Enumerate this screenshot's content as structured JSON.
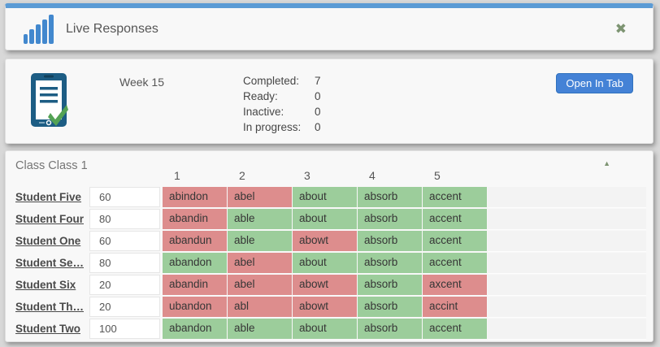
{
  "header": {
    "title": "Live Responses",
    "close_icon": "✖"
  },
  "assignment": {
    "week_label": "Week 15",
    "stats": [
      {
        "label": "Completed:",
        "value": "7"
      },
      {
        "label": "Ready:",
        "value": "0"
      },
      {
        "label": "Inactive:",
        "value": "0"
      },
      {
        "label": "In progress:",
        "value": "0"
      }
    ],
    "open_in_tab_label": "Open In Tab"
  },
  "class_section": {
    "title": "Class Class 1",
    "collapse_icon": "▲",
    "column_headers": [
      "1",
      "2",
      "3",
      "4",
      "5"
    ],
    "rows": [
      {
        "student": "Student Five",
        "score": "60",
        "words": [
          {
            "text": "abindon",
            "correct": false
          },
          {
            "text": "abel",
            "correct": false
          },
          {
            "text": "about",
            "correct": true
          },
          {
            "text": "absorb",
            "correct": true
          },
          {
            "text": "accent",
            "correct": true
          }
        ]
      },
      {
        "student": "Student Four",
        "score": "80",
        "words": [
          {
            "text": "abandin",
            "correct": false
          },
          {
            "text": "able",
            "correct": true
          },
          {
            "text": "about",
            "correct": true
          },
          {
            "text": "absorb",
            "correct": true
          },
          {
            "text": "accent",
            "correct": true
          }
        ]
      },
      {
        "student": "Student One",
        "score": "60",
        "words": [
          {
            "text": "abandun",
            "correct": false
          },
          {
            "text": "able",
            "correct": true
          },
          {
            "text": "abowt",
            "correct": false
          },
          {
            "text": "absorb",
            "correct": true
          },
          {
            "text": "accent",
            "correct": true
          }
        ]
      },
      {
        "student": "Student Se…",
        "score": "80",
        "words": [
          {
            "text": "abandon",
            "correct": true
          },
          {
            "text": "abel",
            "correct": false
          },
          {
            "text": "about",
            "correct": true
          },
          {
            "text": "absorb",
            "correct": true
          },
          {
            "text": "accent",
            "correct": true
          }
        ]
      },
      {
        "student": "Student Six",
        "score": "20",
        "words": [
          {
            "text": "abandin",
            "correct": false
          },
          {
            "text": "abel",
            "correct": false
          },
          {
            "text": "abowt",
            "correct": false
          },
          {
            "text": "absorb",
            "correct": true
          },
          {
            "text": "axcent",
            "correct": false
          }
        ]
      },
      {
        "student": "Student Th…",
        "score": "20",
        "words": [
          {
            "text": "ubandon",
            "correct": false
          },
          {
            "text": "abl",
            "correct": false
          },
          {
            "text": "abowt",
            "correct": false
          },
          {
            "text": "absorb",
            "correct": true
          },
          {
            "text": "accint",
            "correct": false
          }
        ]
      },
      {
        "student": "Student Two",
        "score": "100",
        "words": [
          {
            "text": "abandon",
            "correct": true
          },
          {
            "text": "able",
            "correct": true
          },
          {
            "text": "about",
            "correct": true
          },
          {
            "text": "absorb",
            "correct": true
          },
          {
            "text": "accent",
            "correct": true
          }
        ]
      }
    ]
  },
  "colors": {
    "accent_blue": "#5b9bd5",
    "icon_blue": "#4288ce",
    "clipboard_blue": "#1d5d84",
    "check_green": "#54a254",
    "correct_bg": "#9ccd9b",
    "incorrect_bg": "#dd8d8d"
  }
}
